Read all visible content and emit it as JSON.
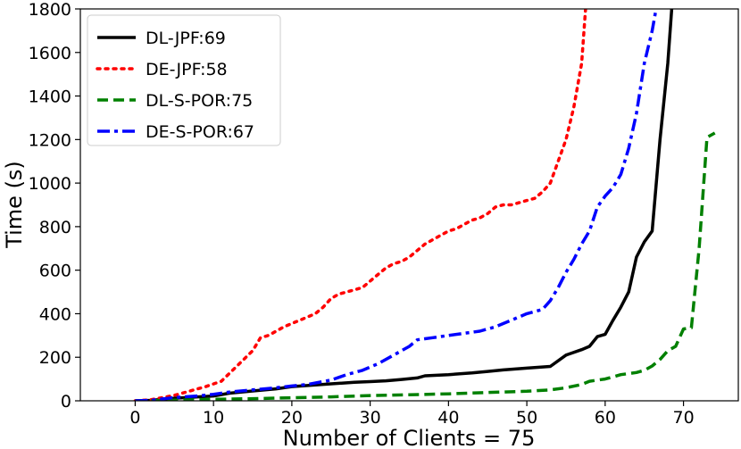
{
  "chart_data": {
    "type": "line",
    "title": "",
    "xlabel": "Number of Clients = 75",
    "ylabel": "Time (s)",
    "xlim": [
      -7,
      77
    ],
    "ylim": [
      0,
      1800
    ],
    "xticks": [
      0,
      10,
      20,
      30,
      40,
      50,
      60,
      70
    ],
    "yticks": [
      0,
      200,
      400,
      600,
      800,
      1000,
      1200,
      1400,
      1600,
      1800
    ],
    "grid": false,
    "legend_position": "top-left",
    "series": [
      {
        "name": "DL-JPF:69",
        "color": "#000000",
        "style": "solid",
        "x": [
          0,
          2,
          5,
          8,
          10,
          12,
          15,
          18,
          20,
          22,
          25,
          28,
          30,
          32,
          34,
          36,
          37,
          40,
          43,
          45,
          47,
          50,
          53,
          55,
          57,
          58,
          59,
          60,
          61,
          62,
          63,
          64,
          65,
          66,
          67,
          68,
          68.5
        ],
        "y": [
          0,
          2,
          12,
          18,
          22,
          35,
          45,
          55,
          65,
          70,
          78,
          85,
          88,
          92,
          98,
          105,
          115,
          120,
          128,
          135,
          142,
          150,
          158,
          210,
          235,
          250,
          295,
          305,
          370,
          430,
          500,
          660,
          730,
          780,
          1200,
          1550,
          1800
        ]
      },
      {
        "name": "DE-JPF:58",
        "color": "#ff0000",
        "style": "dotted",
        "x": [
          0,
          2,
          5,
          7,
          9,
          11,
          13,
          15,
          16,
          17,
          18,
          19,
          20,
          21,
          22,
          23,
          24,
          25,
          26,
          27,
          28,
          29,
          30,
          31,
          32,
          33,
          34,
          35,
          36,
          37,
          38,
          39,
          40,
          41,
          42,
          43,
          44,
          45,
          46,
          47,
          48,
          49,
          50,
          51,
          52,
          53,
          54,
          55,
          56,
          57,
          57.5
        ],
        "y": [
          0,
          5,
          25,
          45,
          65,
          90,
          160,
          230,
          290,
          300,
          320,
          340,
          355,
          370,
          385,
          400,
          430,
          470,
          490,
          500,
          510,
          520,
          550,
          580,
          610,
          630,
          640,
          660,
          690,
          720,
          740,
          760,
          780,
          790,
          810,
          830,
          840,
          860,
          890,
          900,
          900,
          910,
          920,
          930,
          960,
          1000,
          1100,
          1200,
          1350,
          1550,
          1800
        ]
      },
      {
        "name": "DL-S-POR:75",
        "color": "#008000",
        "style": "dashed",
        "x": [
          0,
          2,
          5,
          8,
          10,
          15,
          20,
          25,
          30,
          35,
          40,
          45,
          50,
          53,
          55,
          57,
          58,
          60,
          61,
          62,
          63,
          64,
          65,
          66,
          67,
          68,
          69,
          70,
          71,
          72,
          73,
          74
        ],
        "y": [
          0,
          1,
          3,
          5,
          7,
          10,
          14,
          18,
          24,
          28,
          32,
          38,
          44,
          50,
          60,
          75,
          90,
          100,
          110,
          120,
          125,
          130,
          140,
          160,
          190,
          230,
          250,
          330,
          335,
          700,
          1210,
          1230
        ]
      },
      {
        "name": "DE-S-POR:67",
        "color": "#0000ff",
        "style": "dashdot",
        "x": [
          0,
          2,
          5,
          8,
          10,
          12,
          15,
          18,
          20,
          22,
          25,
          27,
          29,
          31,
          33,
          35,
          36,
          38,
          40,
          42,
          44,
          46,
          48,
          50,
          52,
          53,
          54,
          55,
          56,
          57,
          58,
          59,
          60,
          61,
          62,
          63,
          64,
          65,
          66,
          66.5
        ],
        "y": [
          0,
          2,
          15,
          22,
          30,
          40,
          50,
          60,
          68,
          75,
          95,
          120,
          140,
          170,
          210,
          250,
          280,
          290,
          300,
          310,
          320,
          340,
          370,
          400,
          420,
          460,
          520,
          590,
          650,
          720,
          780,
          890,
          940,
          980,
          1040,
          1160,
          1320,
          1550,
          1700,
          1800
        ]
      }
    ]
  }
}
